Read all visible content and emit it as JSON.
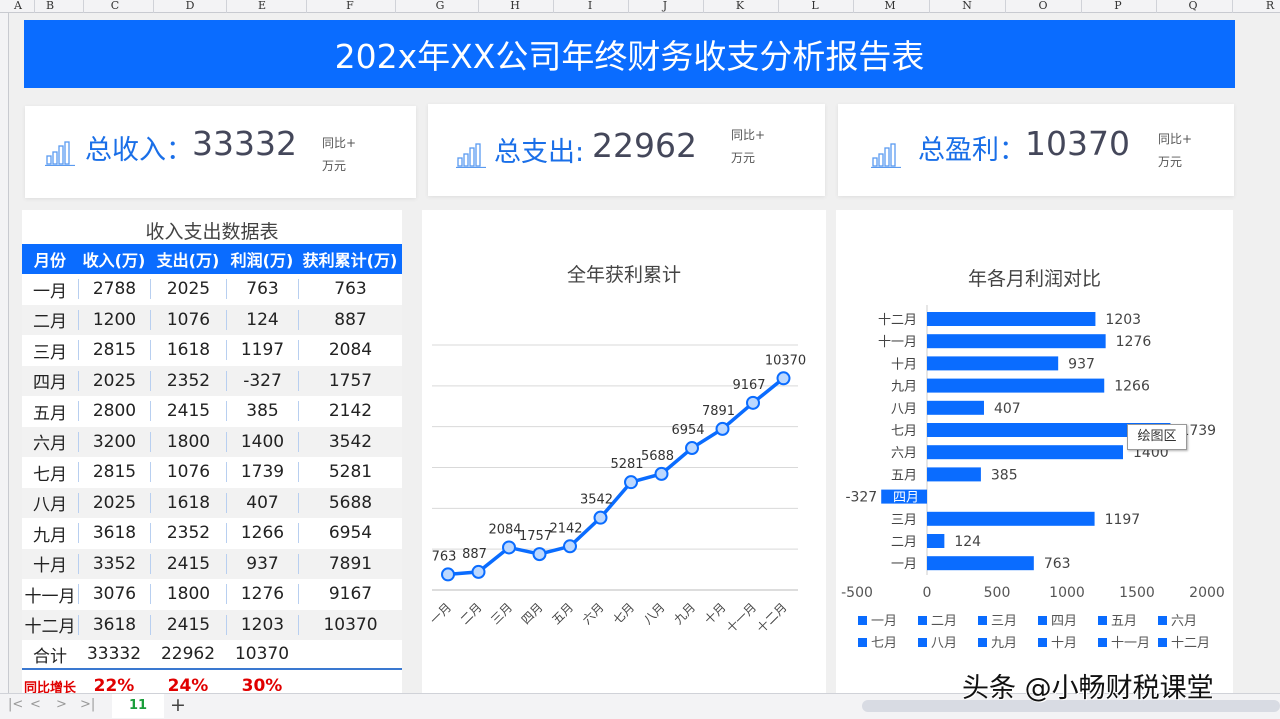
{
  "columns": [
    "A",
    "B",
    "C",
    "D",
    "E",
    "F",
    "G",
    "H",
    "I",
    "J",
    "K",
    "L",
    "M",
    "N",
    "O",
    "P",
    "Q",
    "R"
  ],
  "banner": {
    "title": "202x年XX公司年终财务收支分析报告表"
  },
  "cards": [
    {
      "label": "总收入：",
      "value": "33332",
      "yoy": "同比+",
      "unit": "万元",
      "icon": "bar-chart-icon"
    },
    {
      "label": "总支出:",
      "value": "22962",
      "yoy": "同比+",
      "unit": "万元",
      "icon": "bar-chart-icon"
    },
    {
      "label": "总盈利：",
      "value": "10370",
      "yoy": "同比+",
      "unit": "万元",
      "icon": "bar-chart-icon"
    }
  ],
  "table": {
    "title": "收入支出数据表",
    "headers": [
      "月份",
      "收入(万)",
      "支出(万)",
      "利润(万)",
      "获利累计(万)"
    ],
    "rows": [
      [
        "一月",
        "2788",
        "2025",
        "763",
        "763"
      ],
      [
        "二月",
        "1200",
        "1076",
        "124",
        "887"
      ],
      [
        "三月",
        "2815",
        "1618",
        "1197",
        "2084"
      ],
      [
        "四月",
        "2025",
        "2352",
        "-327",
        "1757"
      ],
      [
        "五月",
        "2800",
        "2415",
        "385",
        "2142"
      ],
      [
        "六月",
        "3200",
        "1800",
        "1400",
        "3542"
      ],
      [
        "七月",
        "2815",
        "1076",
        "1739",
        "5281"
      ],
      [
        "八月",
        "2025",
        "1618",
        "407",
        "5688"
      ],
      [
        "九月",
        "3618",
        "2352",
        "1266",
        "6954"
      ],
      [
        "十月",
        "3352",
        "2415",
        "937",
        "7891"
      ],
      [
        "十一月",
        "3076",
        "1800",
        "1276",
        "9167"
      ],
      [
        "十二月",
        "3618",
        "2415",
        "1203",
        "10370"
      ]
    ],
    "total": [
      "合计",
      "33332",
      "22962",
      "10370"
    ],
    "growth": [
      "同比增长",
      "22%",
      "24%",
      "30%"
    ]
  },
  "chart_data": [
    {
      "type": "line",
      "title": "全年获利累计",
      "categories": [
        "一月",
        "二月",
        "三月",
        "四月",
        "五月",
        "六月",
        "七月",
        "八月",
        "九月",
        "十月",
        "十一月",
        "十二月"
      ],
      "values": [
        763,
        887,
        2084,
        1757,
        2142,
        3542,
        5281,
        5688,
        6954,
        7891,
        9167,
        10370
      ],
      "ylim": [
        0,
        12000
      ],
      "grid": true,
      "color": "#0a6cff"
    },
    {
      "type": "bar",
      "orientation": "horizontal",
      "title": "年各月利润对比",
      "categories": [
        "一月",
        "二月",
        "三月",
        "四月",
        "五月",
        "六月",
        "七月",
        "八月",
        "九月",
        "十月",
        "十一月",
        "十二月"
      ],
      "values": [
        763,
        124,
        1197,
        -327,
        385,
        1400,
        1739,
        407,
        1266,
        937,
        1276,
        1203
      ],
      "xlim": [
        -500,
        2000
      ],
      "xticks": [
        "-500",
        "0",
        "500",
        "1000",
        "1500",
        "2000"
      ],
      "legend": "bottom",
      "color": "#0a6cff"
    }
  ],
  "tooltip": "绘图区",
  "sheet_tab": "11",
  "add_sheet": "+",
  "nav": [
    "|<",
    "<",
    ">",
    ">|"
  ],
  "watermark": "头条 @小畅财税课堂"
}
